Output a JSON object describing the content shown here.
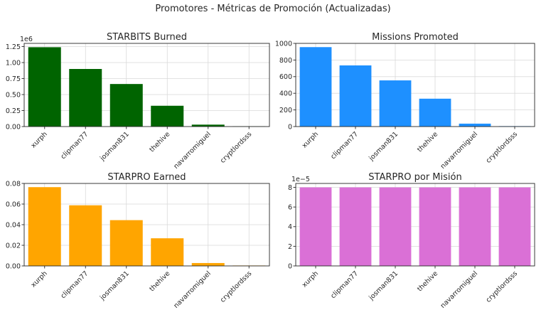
{
  "figure_title": "Promotores - Métricas de Promoción (Actualizadas)",
  "chart_data": [
    {
      "type": "bar",
      "title": "STARBITS Burned",
      "categories": [
        "xurph",
        "clipman77",
        "josman831",
        "thehive",
        "navarromiguel",
        "cryptlordsss"
      ],
      "values": [
        1240000,
        900000,
        665000,
        325000,
        30000,
        5000
      ],
      "ylim": [
        0,
        1300000
      ],
      "yticks": [
        0,
        250000,
        500000,
        750000,
        1000000,
        1250000
      ],
      "ytick_labels": [
        "0.00",
        "0.25",
        "0.50",
        "0.75",
        "1.00",
        "1.25"
      ],
      "offset_label": "1e6",
      "color": "#006400",
      "grid": true
    },
    {
      "type": "bar",
      "title": "Missions Promoted",
      "categories": [
        "xurph",
        "clipman77",
        "josman831",
        "thehive",
        "navarromiguel",
        "cryptlordsss"
      ],
      "values": [
        955,
        735,
        555,
        335,
        35,
        5
      ],
      "ylim": [
        0,
        1000
      ],
      "yticks": [
        0,
        200,
        400,
        600,
        800,
        1000
      ],
      "ytick_labels": [
        "0",
        "200",
        "400",
        "600",
        "800",
        "1000"
      ],
      "offset_label": "",
      "color": "#1E90FF",
      "grid": true
    },
    {
      "type": "bar",
      "title": "STARPRO Earned",
      "categories": [
        "xurph",
        "clipman77",
        "josman831",
        "thehive",
        "navarromiguel",
        "cryptlordsss"
      ],
      "values": [
        0.0764,
        0.0588,
        0.0444,
        0.0268,
        0.0028,
        0.0004
      ],
      "ylim": [
        0,
        0.08
      ],
      "yticks": [
        0,
        0.02,
        0.04,
        0.06,
        0.08
      ],
      "ytick_labels": [
        "0.00",
        "0.02",
        "0.04",
        "0.06",
        "0.08"
      ],
      "offset_label": "",
      "color": "#FFA500",
      "grid": true
    },
    {
      "type": "bar",
      "title": "STARPRO por Misión",
      "categories": [
        "xurph",
        "clipman77",
        "josman831",
        "thehive",
        "navarromiguel",
        "cryptlordsss"
      ],
      "values": [
        8e-05,
        8e-05,
        8e-05,
        8e-05,
        8e-05,
        8e-05
      ],
      "ylim": [
        0,
        8.4e-05
      ],
      "yticks": [
        0,
        2e-05,
        4e-05,
        6e-05,
        8e-05
      ],
      "ytick_labels": [
        "0",
        "2",
        "4",
        "6",
        "8"
      ],
      "offset_label": "1e−5",
      "color": "#DA70D6",
      "grid": true
    }
  ]
}
